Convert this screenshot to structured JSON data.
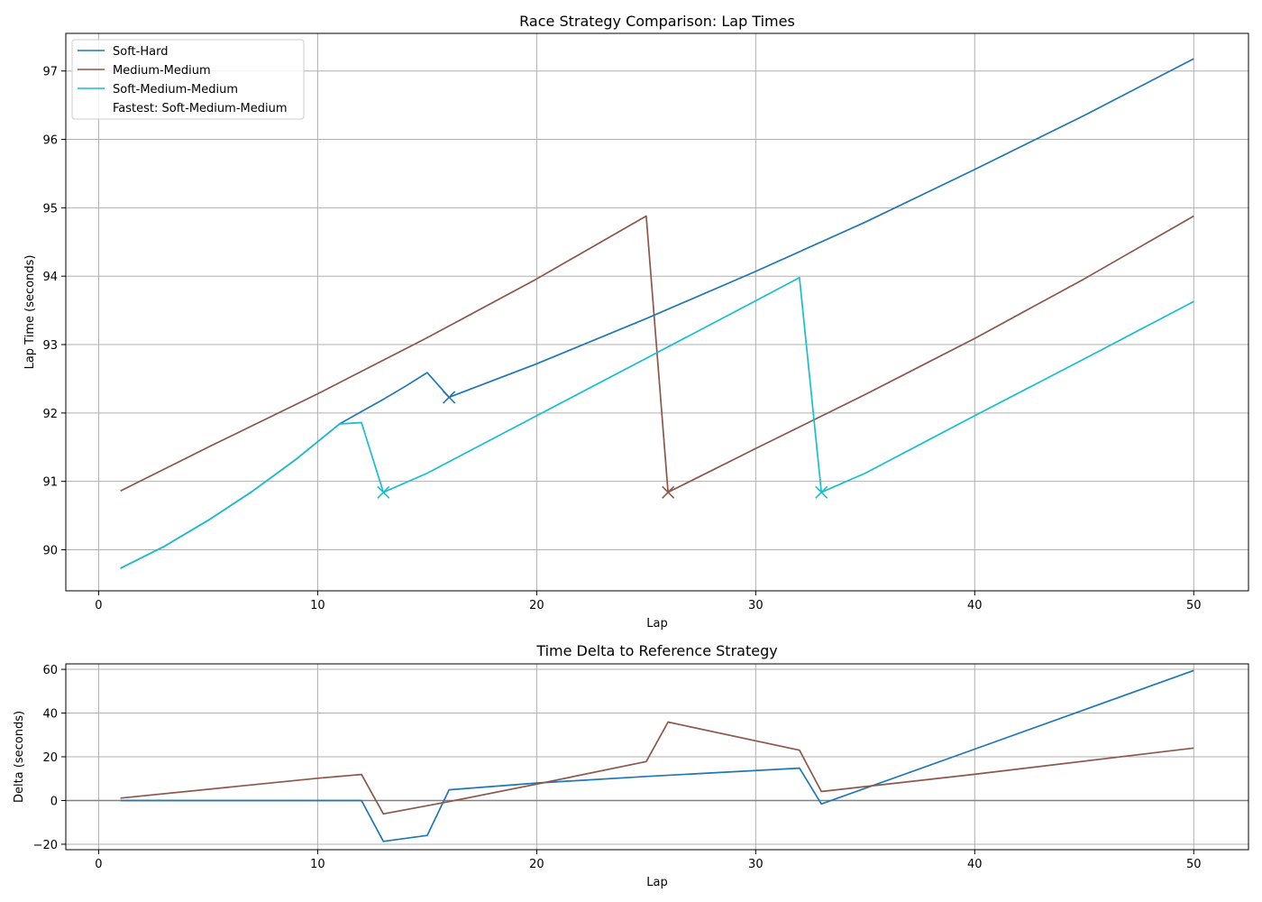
{
  "chart_data": [
    {
      "type": "line",
      "title": "Race Strategy Comparison: Lap Times",
      "xlabel": "Lap",
      "ylabel": "Lap Time (seconds)",
      "xlim": [
        -1.5,
        52.5
      ],
      "ylim": [
        89.4,
        97.55
      ],
      "xticks": [
        0,
        10,
        20,
        30,
        40,
        50
      ],
      "yticks": [
        90,
        91,
        92,
        93,
        94,
        95,
        96,
        97
      ],
      "grid": true,
      "legend_position": "top-left",
      "legend_note": "Fastest: Soft-Medium-Medium",
      "series": [
        {
          "name": "Soft-Hard",
          "color": "#1f77b4",
          "x": [
            1,
            3,
            5,
            7,
            9,
            11,
            12,
            13,
            14,
            15,
            16,
            20,
            25,
            30,
            35,
            40,
            45,
            50
          ],
          "y": [
            89.73,
            90.05,
            90.43,
            90.85,
            91.32,
            91.84,
            92.02,
            92.2,
            92.39,
            92.59,
            92.23,
            92.72,
            93.38,
            94.07,
            94.79,
            95.56,
            96.35,
            97.18
          ],
          "pit_laps": [
            16
          ],
          "pit_times": [
            92.23
          ]
        },
        {
          "name": "Medium-Medium",
          "color": "#8c564b",
          "x": [
            1,
            5,
            10,
            15,
            20,
            25,
            26,
            30,
            35,
            40,
            45,
            50
          ],
          "y": [
            90.86,
            91.5,
            92.28,
            93.1,
            93.96,
            94.88,
            90.84,
            91.48,
            92.27,
            93.09,
            93.96,
            94.88
          ],
          "pit_laps": [
            26
          ],
          "pit_times": [
            90.84
          ]
        },
        {
          "name": "Soft-Medium-Medium",
          "color": "#17becf",
          "x": [
            1,
            3,
            5,
            7,
            9,
            11,
            12,
            13,
            15,
            20,
            25,
            30,
            32,
            33,
            35,
            40,
            45,
            50
          ],
          "y": [
            89.73,
            90.05,
            90.43,
            90.85,
            91.32,
            91.84,
            91.86,
            90.84,
            91.12,
            91.96,
            92.8,
            93.64,
            93.98,
            90.84,
            91.12,
            91.96,
            92.79,
            93.63
          ],
          "pit_laps": [
            13,
            33
          ],
          "pit_times": [
            90.84,
            90.84
          ]
        }
      ]
    },
    {
      "type": "line",
      "title": "Time Delta to Reference Strategy",
      "xlabel": "Lap",
      "ylabel": "Delta (seconds)",
      "xlim": [
        -1.5,
        52.5
      ],
      "ylim": [
        -22.5,
        62.5
      ],
      "xticks": [
        0,
        10,
        20,
        30,
        40,
        50
      ],
      "yticks": [
        -20,
        0,
        20,
        40,
        60
      ],
      "grid": true,
      "reference_line": 0,
      "series": [
        {
          "color": "#1f77b4",
          "x": [
            1,
            12,
            13,
            15,
            16,
            20,
            25,
            32,
            33,
            40,
            45,
            50
          ],
          "y": [
            0,
            0,
            -18.7,
            -16.0,
            4.9,
            8.0,
            11.0,
            14.8,
            -1.6,
            23.5,
            41.5,
            59.5
          ]
        },
        {
          "color": "#8c564b",
          "x": [
            1,
            10,
            12,
            13,
            16,
            20,
            25,
            26,
            32,
            33,
            40,
            50
          ],
          "y": [
            1.1,
            10.2,
            11.9,
            -6.1,
            -0.5,
            7.5,
            17.8,
            35.9,
            23.0,
            4.1,
            12.0,
            24.0
          ]
        }
      ]
    }
  ]
}
